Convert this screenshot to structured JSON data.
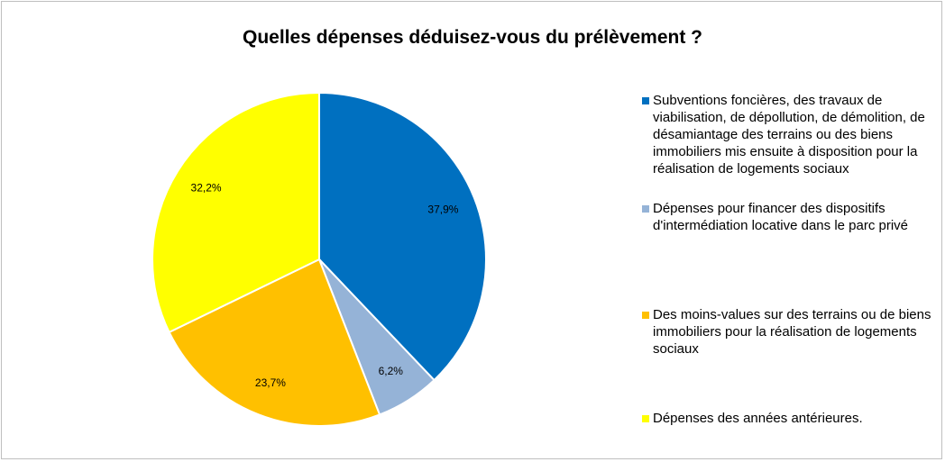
{
  "chart_data": {
    "type": "pie",
    "title": "Quelles dépenses déduisez-vous du prélèvement ?",
    "categories": [
      "Subventions foncières, des travaux de viabilisation, de dépollution, de démolition, de désamiantage des terrains ou des biens immobiliers mis ensuite à disposition pour la réalisation de logements sociaux",
      "Dépenses pour financer des dispositifs d'intermédiation locative dans le parc privé",
      "Des moins-values sur des terrains ou de biens immobiliers pour la réalisation de logements sociaux",
      "Dépenses des années antérieures."
    ],
    "values": [
      37.9,
      6.2,
      23.7,
      32.2
    ],
    "value_labels": [
      "37,9%",
      "6,2%",
      "23,7%",
      "32,2%"
    ],
    "colors": [
      "#0070c0",
      "#95b3d7",
      "#ffc000",
      "#ffff00"
    ],
    "legend": "right"
  }
}
